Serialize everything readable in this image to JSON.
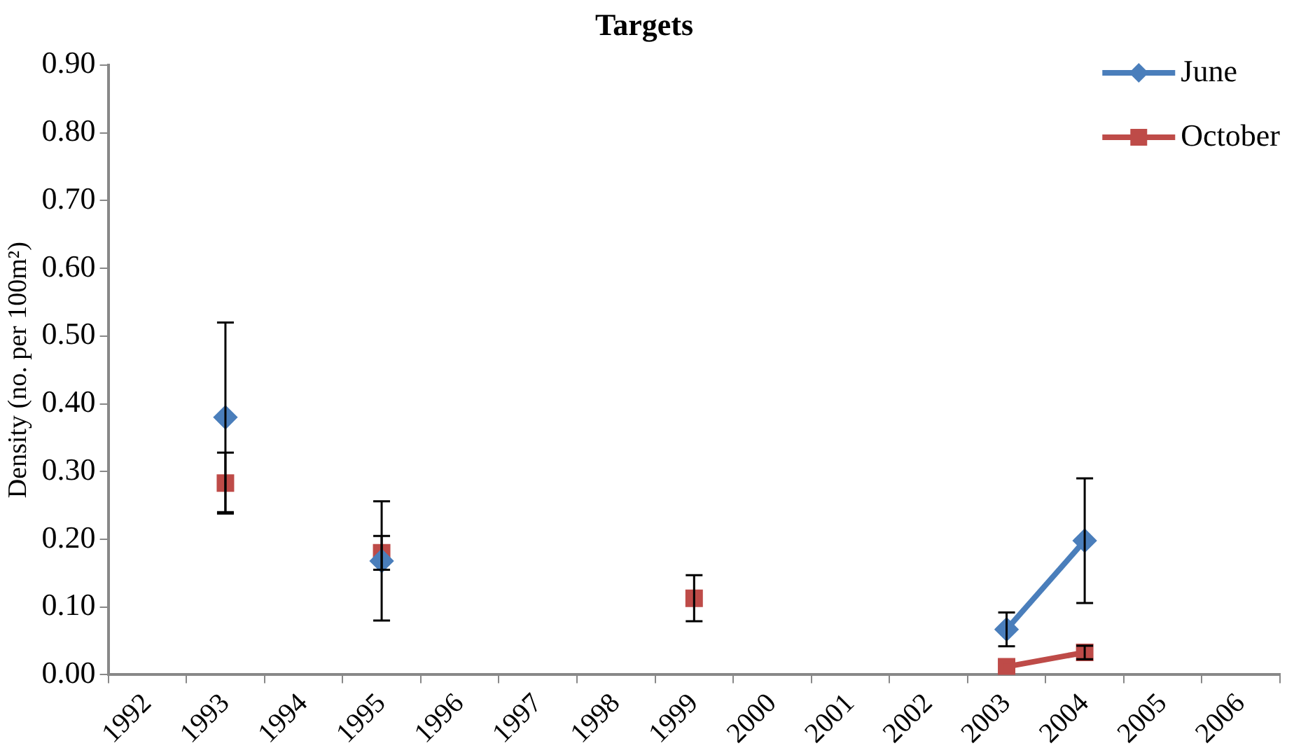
{
  "chart_data": {
    "type": "line",
    "title": "Targets",
    "ylabel": "Density (no. per 100m²)",
    "categories": [
      "1992",
      "1993",
      "1994",
      "1995",
      "1996",
      "1997",
      "1998",
      "1999",
      "2000",
      "2001",
      "2002",
      "2003",
      "2004",
      "2005",
      "2006"
    ],
    "series": [
      {
        "name": "June",
        "color": "#4a7ebb",
        "marker": "diamond",
        "values": [
          null,
          0.38,
          null,
          0.168,
          null,
          null,
          null,
          null,
          null,
          null,
          null,
          0.067,
          0.198,
          null,
          null
        ],
        "errors": [
          null,
          0.14,
          null,
          0.088,
          null,
          null,
          null,
          null,
          null,
          null,
          null,
          0.025,
          0.092,
          null,
          null
        ]
      },
      {
        "name": "October",
        "color": "#be4b48",
        "marker": "square",
        "values": [
          null,
          0.283,
          null,
          0.18,
          null,
          null,
          null,
          0.113,
          null,
          null,
          null,
          0.012,
          0.033,
          null,
          null
        ],
        "errors": [
          null,
          0.045,
          null,
          0.025,
          null,
          null,
          null,
          0.034,
          null,
          null,
          null,
          null,
          0.01,
          null,
          null
        ]
      }
    ],
    "ylim": [
      0,
      0.9
    ],
    "yticks": [
      {
        "value": 0,
        "label": "0.00"
      },
      {
        "value": 0.1,
        "label": "0.10"
      },
      {
        "value": 0.2,
        "label": "0.20"
      },
      {
        "value": 0.3,
        "label": "0.30"
      },
      {
        "value": 0.4,
        "label": "0.40"
      },
      {
        "value": 0.5,
        "label": "0.50"
      },
      {
        "value": 0.6,
        "label": "0.60"
      },
      {
        "value": 0.7,
        "label": "0.70"
      },
      {
        "value": 0.8,
        "label": "0.80"
      },
      {
        "value": 0.9,
        "label": "0.90"
      }
    ],
    "legend": "top right",
    "grid": false,
    "line_style": "solid"
  }
}
